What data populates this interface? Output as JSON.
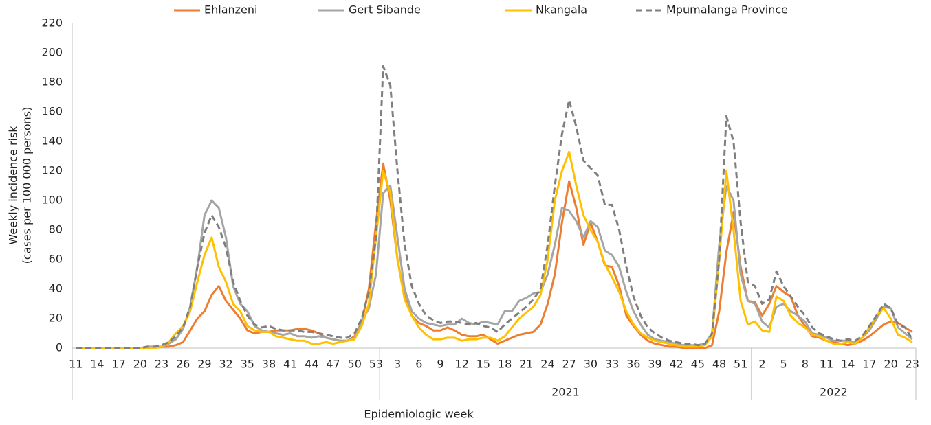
{
  "chart_data": {
    "type": "line",
    "y_label": [
      "Weekly incidence risk",
      "(cases per 100 000 persons)"
    ],
    "x_label": "Epidemiologic week",
    "legend": "top",
    "ylim": [
      0,
      220
    ],
    "yticks": [
      0,
      20,
      40,
      60,
      80,
      100,
      120,
      140,
      160,
      180,
      200,
      220
    ],
    "categories": [
      "11",
      null,
      null,
      "14",
      null,
      null,
      "17",
      null,
      null,
      "20",
      null,
      null,
      "23",
      null,
      null,
      "26",
      null,
      null,
      "29",
      null,
      null,
      "32",
      null,
      null,
      "35",
      null,
      null,
      "38",
      null,
      null,
      "41",
      null,
      null,
      "44",
      null,
      null,
      "47",
      null,
      null,
      "50",
      null,
      null,
      "53",
      null,
      null,
      "3",
      null,
      null,
      "6",
      null,
      null,
      "9",
      null,
      null,
      "12",
      null,
      null,
      "15",
      null,
      null,
      "18",
      null,
      null,
      "21",
      null,
      null,
      "24",
      null,
      null,
      "27",
      null,
      null,
      "30",
      null,
      null,
      "33",
      null,
      null,
      "36",
      null,
      null,
      "39",
      null,
      null,
      "42",
      null,
      null,
      "45",
      null,
      null,
      "48",
      null,
      null,
      "51",
      null,
      null,
      "2",
      null,
      null,
      "5",
      null,
      null,
      "8",
      null,
      null,
      "11",
      null,
      null,
      "14",
      null,
      null,
      "17",
      null,
      null,
      "20",
      null,
      null,
      "23"
    ],
    "x_groups": [
      {
        "label": null,
        "count": 43
      },
      {
        "label": "2021",
        "count": 52
      },
      {
        "label": "2022",
        "count": 23
      }
    ],
    "series": [
      {
        "name": "Ehlanzeni",
        "color": "#ED7D31",
        "dashed": false,
        "values": [
          0,
          0,
          0,
          0,
          0,
          0,
          0,
          0,
          0,
          0,
          0,
          0,
          1,
          1,
          2,
          4,
          12,
          20,
          25,
          36,
          42,
          32,
          26,
          20,
          12,
          10,
          11,
          11,
          12,
          12,
          12,
          13,
          13,
          12,
          10,
          7,
          6,
          5,
          5,
          8,
          18,
          40,
          85,
          125,
          100,
          60,
          35,
          22,
          17,
          15,
          12,
          12,
          14,
          12,
          9,
          8,
          8,
          9,
          6,
          3,
          5,
          7,
          9,
          10,
          11,
          16,
          30,
          50,
          85,
          113,
          95,
          70,
          85,
          72,
          56,
          55,
          42,
          22,
          15,
          9,
          5,
          3,
          2,
          1,
          1,
          0,
          0,
          0,
          0,
          2,
          25,
          65,
          92,
          55,
          32,
          31,
          22,
          30,
          42,
          38,
          35,
          22,
          15,
          8,
          7,
          5,
          4,
          3,
          2,
          3,
          5,
          8,
          12,
          16,
          18,
          17,
          14,
          11
        ]
      },
      {
        "name": "Gert Sibande",
        "color": "#A5A5A5",
        "dashed": false,
        "values": [
          0,
          0,
          0,
          0,
          0,
          0,
          0,
          0,
          0,
          0,
          1,
          1,
          1,
          3,
          6,
          13,
          28,
          55,
          90,
          100,
          95,
          75,
          42,
          30,
          25,
          15,
          12,
          11,
          10,
          9,
          10,
          8,
          8,
          7,
          8,
          7,
          6,
          5,
          5,
          7,
          18,
          27,
          50,
          105,
          110,
          75,
          40,
          25,
          20,
          17,
          16,
          15,
          16,
          16,
          20,
          17,
          16,
          18,
          17,
          16,
          25,
          25,
          32,
          34,
          37,
          38,
          50,
          70,
          95,
          93,
          86,
          75,
          86,
          82,
          66,
          63,
          55,
          38,
          25,
          16,
          9,
          6,
          5,
          4,
          3,
          2,
          2,
          2,
          3,
          10,
          70,
          110,
          100,
          50,
          32,
          30,
          18,
          14,
          28,
          30,
          25,
          22,
          18,
          10,
          9,
          7,
          5,
          5,
          5,
          4,
          7,
          12,
          20,
          28,
          27,
          14,
          10,
          6
        ]
      },
      {
        "name": "Nkangala",
        "color": "#FFC000",
        "dashed": false,
        "values": [
          0,
          0,
          0,
          0,
          0,
          0,
          0,
          0,
          0,
          0,
          0,
          0,
          1,
          4,
          10,
          15,
          25,
          45,
          63,
          75,
          55,
          45,
          30,
          25,
          15,
          12,
          11,
          11,
          8,
          7,
          6,
          5,
          5,
          3,
          3,
          4,
          3,
          4,
          5,
          6,
          15,
          30,
          75,
          120,
          105,
          60,
          33,
          22,
          14,
          9,
          6,
          6,
          7,
          7,
          5,
          6,
          6,
          7,
          7,
          5,
          8,
          14,
          20,
          24,
          28,
          36,
          60,
          100,
          120,
          133,
          110,
          90,
          80,
          72,
          57,
          48,
          38,
          25,
          16,
          10,
          7,
          5,
          4,
          3,
          2,
          1,
          1,
          1,
          2,
          8,
          60,
          120,
          80,
          32,
          16,
          18,
          12,
          11,
          35,
          32,
          22,
          17,
          14,
          9,
          8,
          5,
          3,
          3,
          4,
          3,
          7,
          14,
          22,
          27,
          20,
          9,
          7,
          4
        ]
      },
      {
        "name": "Mpumalanga Province",
        "color": "#7F7F7F",
        "dashed": true,
        "values": [
          0,
          0,
          0,
          0,
          0,
          0,
          0,
          0,
          0,
          0,
          1,
          1,
          2,
          4,
          8,
          14,
          28,
          55,
          78,
          90,
          82,
          68,
          45,
          32,
          22,
          16,
          14,
          15,
          13,
          12,
          12,
          12,
          11,
          11,
          10,
          9,
          8,
          7,
          7,
          10,
          20,
          38,
          75,
          191,
          178,
          120,
          70,
          42,
          30,
          22,
          19,
          17,
          18,
          18,
          17,
          16,
          17,
          15,
          14,
          11,
          16,
          20,
          24,
          28,
          33,
          40,
          70,
          110,
          145,
          168,
          150,
          127,
          122,
          117,
          97,
          97,
          80,
          55,
          35,
          22,
          14,
          10,
          7,
          5,
          4,
          3,
          3,
          2,
          3,
          10,
          60,
          157,
          140,
          85,
          45,
          42,
          30,
          33,
          52,
          42,
          35,
          28,
          22,
          14,
          10,
          8,
          6,
          5,
          6,
          5,
          8,
          15,
          22,
          30,
          27,
          16,
          14,
          6
        ]
      }
    ]
  }
}
